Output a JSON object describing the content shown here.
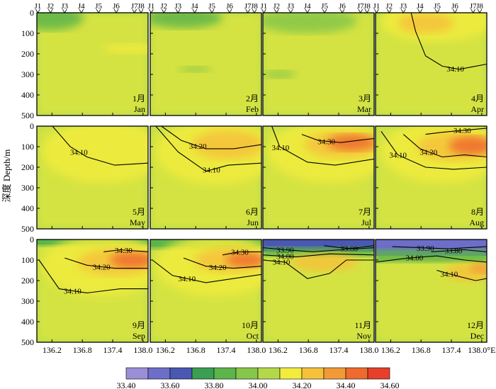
{
  "chart_data": {
    "type": "heatmap",
    "ylabel": "深度 Depth/m",
    "x_unit_suffix": "°E",
    "xlim": [
      135.9,
      138.1
    ],
    "ylim": [
      500,
      0
    ],
    "x_ticks": [
      136.2,
      136.8,
      137.4,
      138.0
    ],
    "x_tick_labels": [
      "136.2",
      "136.8",
      "137.4",
      "138.0"
    ],
    "y_ticks": [
      0,
      100,
      200,
      300,
      400,
      500
    ],
    "y_tick_labels": [
      "0",
      "100",
      "200",
      "300",
      "400",
      "500"
    ],
    "stations": [
      "J1",
      "J2",
      "J3",
      "J4",
      "J5",
      "J6",
      "J7",
      "J8"
    ],
    "station_lon": [
      135.92,
      136.17,
      136.45,
      136.78,
      137.12,
      137.47,
      137.83,
      137.96
    ],
    "colorbar": {
      "levels": [
        33.4,
        33.5,
        33.6,
        33.7,
        33.8,
        33.9,
        34.0,
        34.1,
        34.2,
        34.3,
        34.4,
        34.5,
        34.6
      ],
      "tick_labels": [
        "33.40",
        "33.60",
        "33.80",
        "34.00",
        "34.20",
        "34.40",
        "34.60"
      ],
      "colors": [
        "#9a8fd6",
        "#6d6ec8",
        "#4a58b2",
        "#3a9e53",
        "#5db44a",
        "#86c64a",
        "#b3d94a",
        "#f1ec3d",
        "#f6c13a",
        "#f29a36",
        "#ee6a2e",
        "#e6402a"
      ]
    },
    "panels": [
      {
        "month_cn": "1月",
        "month_en": "Jan",
        "contours": []
      },
      {
        "month_cn": "2月",
        "month_en": "Feb",
        "contours": []
      },
      {
        "month_cn": "3月",
        "month_en": "Mar",
        "contours": []
      },
      {
        "month_cn": "4月",
        "month_en": "Apr",
        "contours": [
          "34.10"
        ]
      },
      {
        "month_cn": "5月",
        "month_en": "May",
        "contours": [
          "34.10"
        ]
      },
      {
        "month_cn": "6月",
        "month_en": "Jun",
        "contours": [
          "34.20",
          "34.10"
        ]
      },
      {
        "month_cn": "7月",
        "month_en": "Jul",
        "contours": [
          "34.30",
          "34.10"
        ]
      },
      {
        "month_cn": "8月",
        "month_en": "Aug",
        "contours": [
          "34.30",
          "34.20",
          "34.10"
        ]
      },
      {
        "month_cn": "9月",
        "month_en": "Sep",
        "contours": [
          "34.30",
          "34.20",
          "34.10"
        ]
      },
      {
        "month_cn": "10月",
        "month_en": "Oct",
        "contours": [
          "34.30",
          "34.20",
          "34.10"
        ]
      },
      {
        "month_cn": "11月",
        "month_en": "Nov",
        "contours": [
          "33.90",
          "34.00",
          "33.80",
          "34.10"
        ]
      },
      {
        "month_cn": "12月",
        "month_en": "Dec",
        "contours": [
          "33.90",
          "33.80",
          "34.00",
          "34.10"
        ]
      }
    ]
  }
}
